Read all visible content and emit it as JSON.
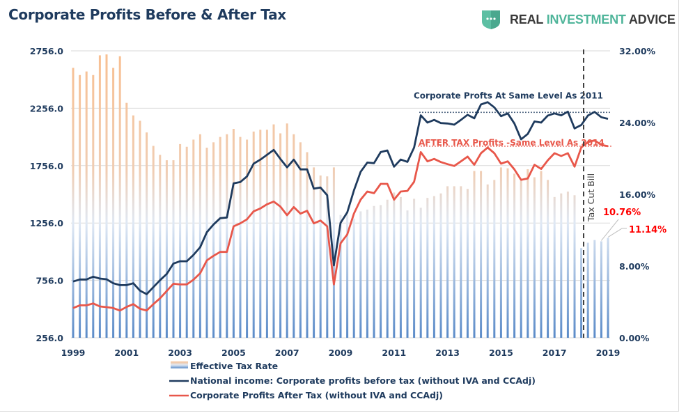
{
  "title": "Corporate Profits Before & After Tax",
  "logo": {
    "word1": "REAL",
    "word2": "INVESTMENT",
    "word3": "ADVICE",
    "icon": "shield-chat-icon"
  },
  "colors": {
    "before_tax": "#1f3b5e",
    "after_tax": "#e8574a",
    "bar_top": "#f8bf91",
    "bar_bottom": "#5b8bc8",
    "label_red": "#ff0000",
    "axis_text": "#1f3b5e"
  },
  "chart_data": {
    "type": "bar+line",
    "title": "Corporate Profits Before & After Tax",
    "x_start": "1999-Q1",
    "x_ticks": [
      "1999",
      "2001",
      "2003",
      "2005",
      "2007",
      "2009",
      "2011",
      "2013",
      "2015",
      "2017",
      "2019"
    ],
    "y_left": {
      "ylim": [
        256,
        2756
      ],
      "ticks": [
        "256.0",
        "756.0",
        "1256.0",
        "1756.0",
        "2256.0",
        "2756.0"
      ]
    },
    "y_right": {
      "ylim": [
        0,
        32
      ],
      "ticks": [
        "0.00%",
        "8.00%",
        "16.00%",
        "24.00%",
        "32.00%"
      ]
    },
    "grid": true,
    "legend_placement": "bottom",
    "series": [
      {
        "name": "Effective Tax Rate",
        "type": "bar",
        "axis": "right",
        "unit": "%",
        "values": [
          30.1,
          29.3,
          29.7,
          29.3,
          31.5,
          31.6,
          30.1,
          31.4,
          26.2,
          24.8,
          24.2,
          22.9,
          21.4,
          20.4,
          19.8,
          19.8,
          21.6,
          21.3,
          22.1,
          22.7,
          21.2,
          21.8,
          22.4,
          22.7,
          23.3,
          22.4,
          22.1,
          23.0,
          23.2,
          23.2,
          23.8,
          22.8,
          23.9,
          22.7,
          21.8,
          20.7,
          19.0,
          18.1,
          18.0,
          19.0,
          13.7,
          13.7,
          13.3,
          14.1,
          14.3,
          14.7,
          14.8,
          15.4,
          16.2,
          15.7,
          14.2,
          15.5,
          14.5,
          15.6,
          15.8,
          16.1,
          16.9,
          16.9,
          16.9,
          16.6,
          18.6,
          18.6,
          17.1,
          17.6,
          19.0,
          18.9,
          18.3,
          17.5,
          18.8,
          17.9,
          18.6,
          17.6,
          15.7,
          16.1,
          16.3,
          15.9,
          10.0,
          10.6,
          10.9,
          10.76,
          11.14
        ]
      },
      {
        "name": "National income: Corporate profits before tax (without IVA and CCAdj)",
        "type": "line",
        "axis": "left",
        "values": [
          746,
          764,
          764,
          788,
          772,
          766,
          731,
          715,
          715,
          731,
          667,
          636,
          697,
          758,
          812,
          903,
          923,
          923,
          978,
          1045,
          1176,
          1243,
          1298,
          1304,
          1601,
          1613,
          1662,
          1773,
          1808,
          1850,
          1893,
          1814,
          1741,
          1808,
          1723,
          1723,
          1555,
          1565,
          1498,
          887,
          1257,
          1348,
          1540,
          1702,
          1783,
          1777,
          1874,
          1888,
          1747,
          1809,
          1789,
          1914,
          2194,
          2131,
          2154,
          2127,
          2123,
          2113,
          2154,
          2199,
          2168,
          2289,
          2309,
          2263,
          2187,
          2211,
          2123,
          1985,
          2032,
          2141,
          2131,
          2192,
          2211,
          2194,
          2226,
          2080,
          2110,
          2192,
          2224,
          2178,
          2164
        ]
      },
      {
        "name": "Corporate Profits After Tax (without IVA and CCAdj)",
        "type": "line",
        "axis": "left",
        "values": [
          515,
          539,
          539,
          555,
          529,
          523,
          515,
          493,
          525,
          549,
          509,
          493,
          549,
          600,
          664,
          727,
          721,
          721,
          762,
          818,
          930,
          970,
          1004,
          1004,
          1227,
          1253,
          1288,
          1358,
          1383,
          1419,
          1443,
          1399,
          1324,
          1395,
          1338,
          1362,
          1253,
          1277,
          1227,
          721,
          1079,
          1156,
          1338,
          1459,
          1530,
          1516,
          1597,
          1597,
          1459,
          1530,
          1536,
          1615,
          1874,
          1793,
          1814,
          1787,
          1769,
          1753,
          1793,
          1834,
          1763,
          1864,
          1914,
          1864,
          1773,
          1793,
          1723,
          1632,
          1644,
          1763,
          1727,
          1803,
          1864,
          1840,
          1864,
          1747,
          1914,
          1961,
          1976,
          1936,
          1925
        ]
      }
    ],
    "annotations": [
      {
        "text": "Corporate Profts At Same Level As 2011",
        "reference_value": 2220,
        "style": "dotted",
        "from": "2012-Q1"
      },
      {
        "text": "AFTER TAX Profits -Same Level As 2014",
        "reference_value": 1925,
        "style": "dotted",
        "from": "2012-Q1"
      },
      {
        "text": "Tax Cut Bill",
        "at": "2018-Q1",
        "style": "dashed-vertical"
      },
      {
        "text": "10.76%",
        "points_to_index": 79
      },
      {
        "text": "11.14%",
        "points_to_index": 80
      }
    ]
  }
}
